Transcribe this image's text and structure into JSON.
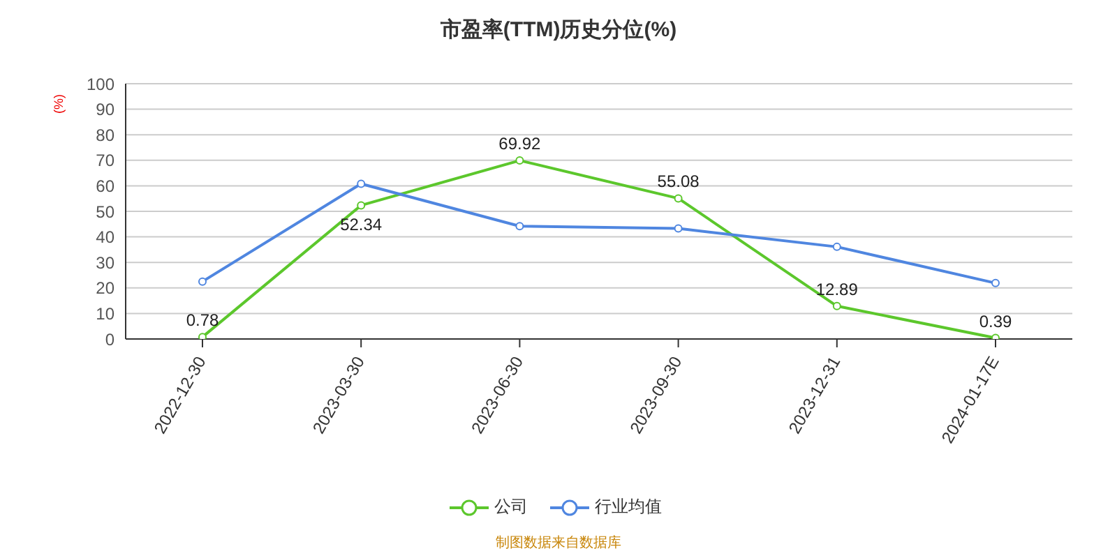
{
  "chart_data": {
    "type": "line",
    "title": "市盈率(TTM)历史分位(%)",
    "ylabel": "(%)",
    "categories": [
      "2022-12-30",
      "2023-03-30",
      "2023-06-30",
      "2023-09-30",
      "2023-12-31",
      "2024-01-17E"
    ],
    "series": [
      {
        "name": "公司",
        "color": "#5cc72c",
        "values": [
          0.78,
          52.34,
          69.92,
          55.08,
          12.89,
          0.39
        ],
        "value_labels": [
          "0.78",
          "52.34",
          "69.92",
          "55.08",
          "12.89",
          "0.39"
        ]
      },
      {
        "name": "行业均值",
        "color": "#4f86e0",
        "values": [
          22.5,
          60.8,
          44.2,
          43.3,
          36.1,
          21.9
        ]
      }
    ],
    "ylim": [
      0,
      100
    ],
    "yticks": [
      0,
      10,
      20,
      30,
      40,
      50,
      60,
      70,
      80,
      90,
      100
    ],
    "grid": "y",
    "legend": "bottom",
    "marker": "circle",
    "line_style": "solid",
    "annotations": [
      "制图数据来自数据库"
    ]
  }
}
